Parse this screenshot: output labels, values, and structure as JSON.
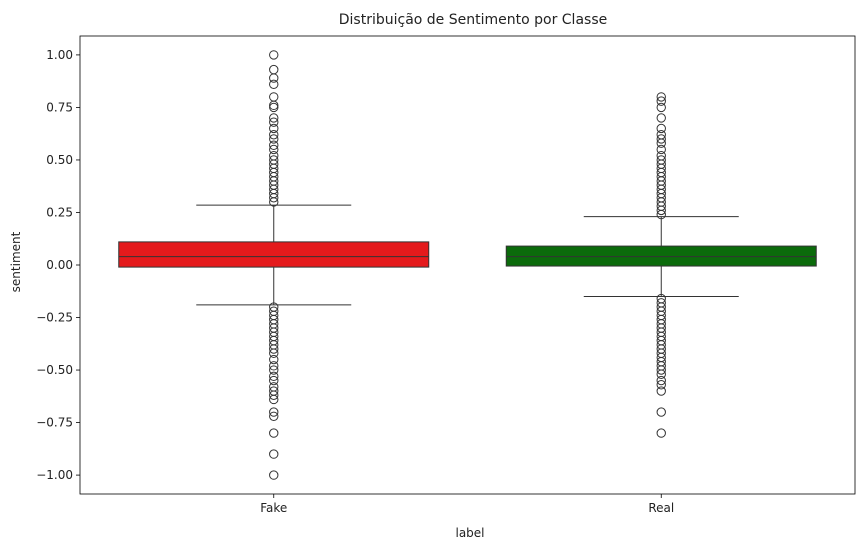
{
  "chart_data": {
    "type": "boxplot",
    "title": "Distribuição de Sentimento por Classe",
    "xlabel": "label",
    "ylabel": "sentiment",
    "ylim": [
      -1.09,
      1.09
    ],
    "yticks": [
      -1.0,
      -0.75,
      -0.5,
      -0.25,
      0.0,
      0.25,
      0.5,
      0.75,
      1.0
    ],
    "ytick_labels": [
      "−1.00",
      "−0.75",
      "−0.50",
      "−0.25",
      "0.00",
      "0.25",
      "0.50",
      "0.75",
      "1.00"
    ],
    "grid": false,
    "categories": [
      "Fake",
      "Real"
    ],
    "series": [
      {
        "category": "Fake",
        "color": "#e41a1c",
        "q1": -0.01,
        "median": 0.04,
        "q3": 0.11,
        "whisker_low": -0.19,
        "whisker_high": 0.285,
        "outliers": [
          1.0,
          0.93,
          0.89,
          0.86,
          0.8,
          0.76,
          0.75,
          0.7,
          0.68,
          0.65,
          0.62,
          0.6,
          0.57,
          0.55,
          0.52,
          0.5,
          0.48,
          0.46,
          0.44,
          0.42,
          0.4,
          0.38,
          0.36,
          0.34,
          0.32,
          0.3,
          -0.2,
          -0.22,
          -0.24,
          -0.26,
          -0.28,
          -0.3,
          -0.32,
          -0.34,
          -0.36,
          -0.38,
          -0.4,
          -0.42,
          -0.45,
          -0.48,
          -0.5,
          -0.53,
          -0.55,
          -0.58,
          -0.6,
          -0.62,
          -0.64,
          -0.7,
          -0.72,
          -0.8,
          -0.9,
          -1.0
        ]
      },
      {
        "category": "Real",
        "color": "#0b6b0b",
        "q1": -0.005,
        "median": 0.04,
        "q3": 0.09,
        "whisker_low": -0.15,
        "whisker_high": 0.23,
        "outliers": [
          0.8,
          0.78,
          0.75,
          0.7,
          0.65,
          0.62,
          0.6,
          0.58,
          0.55,
          0.52,
          0.5,
          0.48,
          0.46,
          0.44,
          0.42,
          0.4,
          0.38,
          0.36,
          0.34,
          0.32,
          0.3,
          0.28,
          0.26,
          0.24,
          -0.16,
          -0.18,
          -0.2,
          -0.22,
          -0.24,
          -0.26,
          -0.28,
          -0.3,
          -0.32,
          -0.34,
          -0.36,
          -0.38,
          -0.4,
          -0.42,
          -0.44,
          -0.46,
          -0.48,
          -0.5,
          -0.52,
          -0.55,
          -0.57,
          -0.6,
          -0.7,
          -0.8
        ]
      }
    ]
  }
}
